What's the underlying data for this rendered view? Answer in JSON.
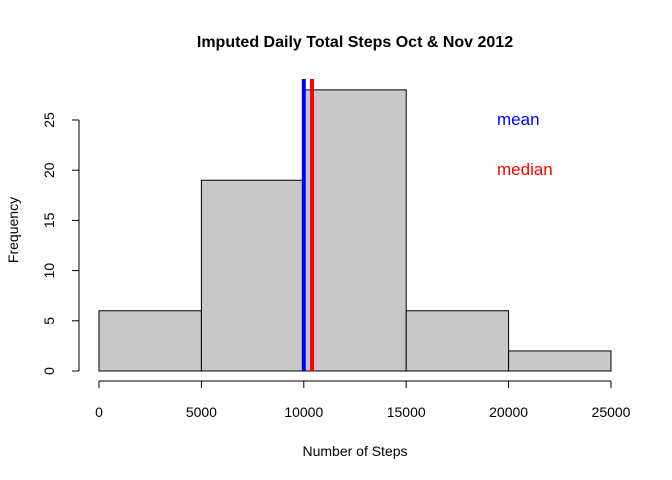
{
  "chart_data": {
    "type": "bar",
    "subtype": "histogram",
    "title": "Imputed Daily Total Steps Oct & Nov 2012",
    "xlabel": "Number of Steps",
    "ylabel": "Frequency",
    "bins": [
      {
        "start": 0,
        "end": 5000,
        "count": 6
      },
      {
        "start": 5000,
        "end": 10000,
        "count": 19
      },
      {
        "start": 10000,
        "end": 15000,
        "count": 28
      },
      {
        "start": 15000,
        "end": 20000,
        "count": 6
      },
      {
        "start": 20000,
        "end": 25000,
        "count": 2
      }
    ],
    "xticks": [
      0,
      5000,
      10000,
      15000,
      20000,
      25000
    ],
    "xtick_labels": [
      "0",
      "5000",
      "10000",
      "15000",
      "20000",
      "25000"
    ],
    "yticks": [
      0,
      5,
      10,
      15,
      20,
      25
    ],
    "ytick_labels": [
      "0",
      "5",
      "10",
      "15",
      "20",
      "25"
    ],
    "xlim": [
      0,
      25000
    ],
    "ylim": [
      0,
      28
    ],
    "bar_color": "#c8c8c8",
    "reference_lines": [
      {
        "label": "mean",
        "value": 10000,
        "color": "#0000ff"
      },
      {
        "label": "median",
        "value": 10400,
        "color": "#ff0000"
      }
    ],
    "grid": false,
    "legend_placement": "top-right"
  }
}
